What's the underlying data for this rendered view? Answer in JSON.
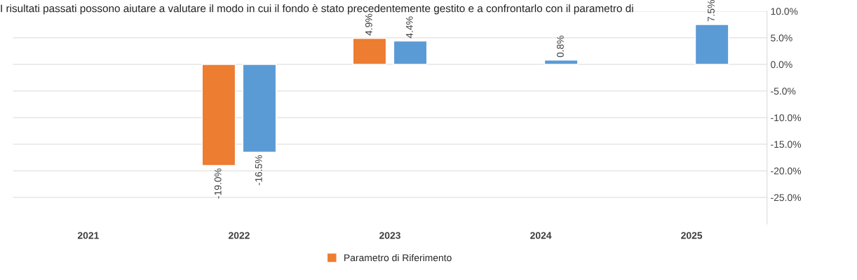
{
  "chart_data": {
    "type": "bar",
    "title": "I risultati passati possono aiutare a valutare il modo in cui il fondo è stato precedentemente gestito e a confrontarlo con il parametro di",
    "categories": [
      "2021",
      "2022",
      "2023",
      "2024",
      "2025"
    ],
    "series": [
      {
        "name": "Parametro di Riferimento",
        "color": "#ed7d31",
        "values": [
          null,
          -19.0,
          4.9,
          null,
          null
        ],
        "value_labels": [
          null,
          "-19.0%",
          "4.9%",
          null,
          null
        ]
      },
      {
        "color": "#5b9bd5",
        "values": [
          null,
          -16.5,
          4.4,
          0.8,
          7.5
        ],
        "value_labels": [
          null,
          "-16.5%",
          "4.4%",
          "0.8%",
          "7.5%"
        ]
      }
    ],
    "ylim": [
      -30,
      10
    ],
    "yticks": [
      {
        "value": 10,
        "label": "10.0%"
      },
      {
        "value": 5,
        "label": "5.0%"
      },
      {
        "value": 0,
        "label": "0.0%"
      },
      {
        "value": -5,
        "label": "-5.0%"
      },
      {
        "value": -10,
        "label": "-10.0%"
      },
      {
        "value": -15,
        "label": "-15.0%"
      },
      {
        "value": -20,
        "label": "-20.0%"
      },
      {
        "value": -25,
        "label": "-25.0%"
      }
    ],
    "grid": "y",
    "legend": "bottom"
  }
}
